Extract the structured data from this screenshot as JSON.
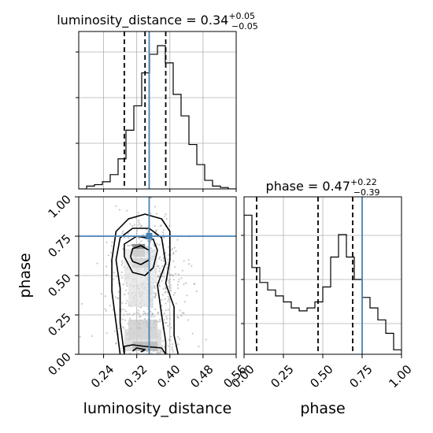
{
  "chart_data": {
    "type": "corner",
    "parameters": [
      "luminosity_distance",
      "phase"
    ],
    "truths": {
      "luminosity_distance": 0.35,
      "phase": 0.75
    },
    "titles": [
      {
        "param": "luminosity_distance",
        "prefix": "luminosity_distance = 0.34",
        "plus": "+0.05",
        "minus": "−0.05"
      },
      {
        "param": "phase",
        "prefix": "phase = 0.47",
        "plus": "+0.22",
        "minus": "−0.39"
      }
    ],
    "xlabel_distance": "luminosity_distance",
    "ylabel_phase": "phase",
    "xlabel_phase": "phase",
    "distance_range": [
      0.18,
      0.56
    ],
    "phase_range": [
      0.0,
      1.0
    ],
    "distance_ticks": [
      "0.24",
      "0.32",
      "0.40",
      "0.48",
      "0.56"
    ],
    "phase_ticks": [
      "0.00",
      "0.25",
      "0.50",
      "0.75",
      "1.00"
    ],
    "distance_quantiles": [
      0.29,
      0.34,
      0.39
    ],
    "phase_quantiles": [
      0.08,
      0.47,
      0.69
    ],
    "hist_distance": {
      "bins": 20,
      "heights": [
        0.0,
        0.02,
        0.03,
        0.05,
        0.1,
        0.21,
        0.41,
        0.58,
        0.81,
        0.94,
        1.0,
        0.88,
        0.66,
        0.51,
        0.31,
        0.17,
        0.06,
        0.02,
        0.01,
        0.0
      ]
    },
    "hist_phase": {
      "bins": 20,
      "heights": [
        0.93,
        0.58,
        0.48,
        0.43,
        0.39,
        0.35,
        0.31,
        0.29,
        0.31,
        0.35,
        0.45,
        0.65,
        0.8,
        0.65,
        0.5,
        0.38,
        0.31,
        0.23,
        0.14,
        0.03
      ]
    },
    "grid": true,
    "colors": {
      "truth": "#4682b4",
      "ink": "#000000",
      "grid": "#b0b0b0",
      "scatter": "#9a9a9a"
    }
  }
}
